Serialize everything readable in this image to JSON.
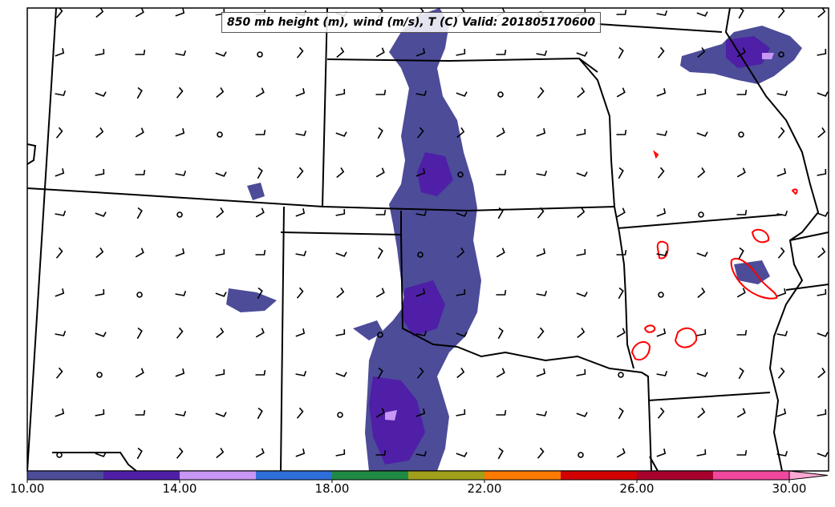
{
  "title": "850 mb height (m), wind (m/s), T (C) Valid: 201805170600",
  "colorbar": {
    "labels": [
      "10.00",
      "14.00",
      "18.00",
      "22.00",
      "26.00",
      "30.00"
    ],
    "colors": [
      "#4c4c99",
      "#4f1fa7",
      "#c896f5",
      "#2e6fd9",
      "#1f8a44",
      "#a0a01a",
      "#ff7a00",
      "#d30000",
      "#a8002e",
      "#f0489e",
      "#ffa7d3"
    ]
  },
  "colors": {
    "wind_shade_low": "#4c4c99",
    "wind_shade_mid": "#4f1fa7",
    "wind_shade_high": "#c896f5",
    "temperature_contour": "#ff0000",
    "boundaries": "#000000"
  },
  "icons": {
    "wind_barb": "wind-barb-icon",
    "calm_wind": "calm-circle-icon"
  }
}
